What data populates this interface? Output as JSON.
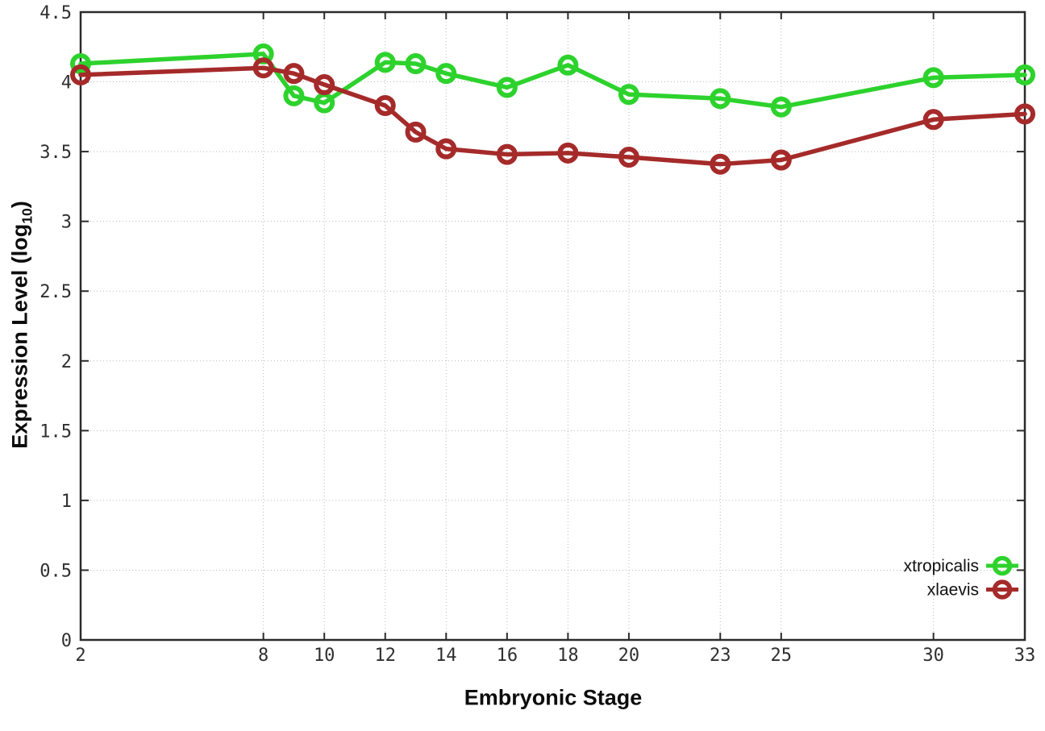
{
  "chart_data": {
    "type": "line",
    "title": "",
    "xlabel": "Embryonic Stage",
    "ylabel": "Expression Level (log10)",
    "ylabel_prefix": "Expression Level (log",
    "ylabel_sub": "10",
    "ylabel_suffix": ")",
    "xlim": [
      2,
      33
    ],
    "ylim": [
      0,
      4.5
    ],
    "grid": "dotted",
    "legend_position": "bottom-right",
    "x": [
      2,
      8,
      9,
      10,
      12,
      13,
      14,
      16,
      18,
      20,
      23,
      25,
      30,
      33
    ],
    "xticks": {
      "values": [
        2,
        8,
        10,
        12,
        14,
        16,
        18,
        20,
        23,
        25,
        30,
        33
      ],
      "labels": [
        "2",
        "8",
        "10",
        "12",
        "14",
        "16",
        "18",
        "20",
        "23",
        "25",
        "30",
        "33"
      ]
    },
    "yticks": {
      "values": [
        0,
        0.5,
        1,
        1.5,
        2,
        2.5,
        3,
        3.5,
        4,
        4.5
      ],
      "labels": [
        "0",
        "0.5",
        "1",
        "1.5",
        "2",
        "2.5",
        "3",
        "3.5",
        "4",
        "4.5"
      ]
    },
    "series": [
      {
        "name": "xtropicalis",
        "color": "#2dd22d",
        "values": [
          4.13,
          4.2,
          3.9,
          3.85,
          4.14,
          4.13,
          4.06,
          3.96,
          4.12,
          3.91,
          3.88,
          3.82,
          4.03,
          4.05
        ]
      },
      {
        "name": "xlaevis",
        "color": "#a52a2a",
        "values": [
          4.05,
          4.1,
          4.06,
          3.98,
          3.83,
          3.64,
          3.52,
          3.48,
          3.49,
          3.46,
          3.41,
          3.44,
          3.73,
          3.77
        ]
      }
    ],
    "colors": {
      "background": "#ffffff",
      "axis": "#2b2b2b",
      "grid": "#b9b9b9",
      "tick_text": "#2f2f2f"
    }
  }
}
